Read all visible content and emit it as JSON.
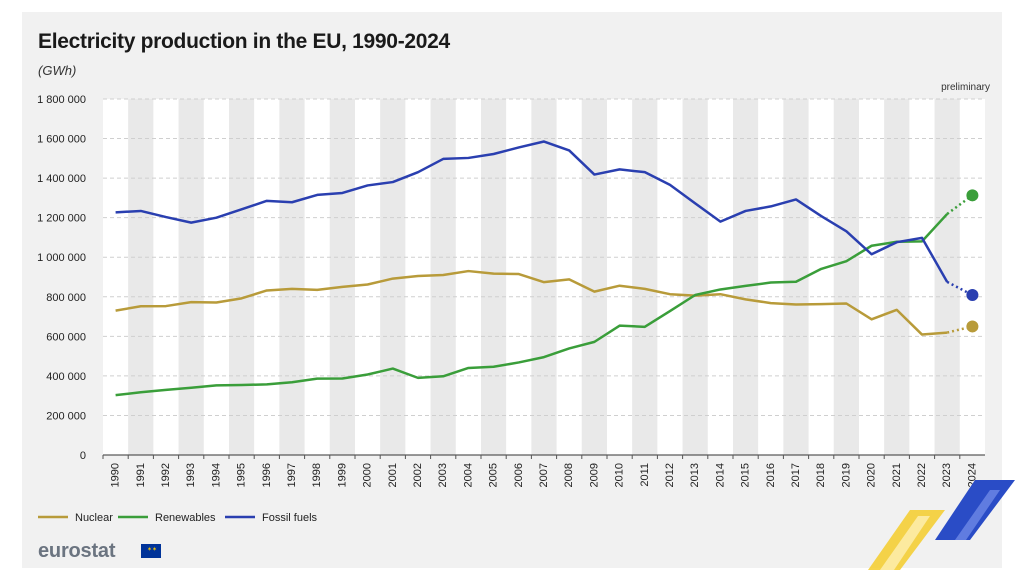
{
  "chart_data": {
    "type": "line",
    "title": "Electricity production in the EU, 1990-2024",
    "unit": "(GWh)",
    "annotation": "preliminary",
    "ylim": [
      0,
      1800000
    ],
    "yticks": [
      0,
      200000,
      400000,
      600000,
      800000,
      1000000,
      1200000,
      1400000,
      1600000,
      1800000
    ],
    "ytick_labels": [
      "0",
      "200 000",
      "400 000",
      "600 000",
      "800 000",
      "1 000 000",
      "1 200 000",
      "1 400 000",
      "1 600 000",
      "1 800 000"
    ],
    "x": [
      "1990",
      "1991",
      "1992",
      "1993",
      "1994",
      "1995",
      "1996",
      "1997",
      "1998",
      "1999",
      "2000",
      "2001",
      "2002",
      "2003",
      "2004",
      "2005",
      "2006",
      "2007",
      "2008",
      "2009",
      "2010",
      "2011",
      "2012",
      "2013",
      "2014",
      "2015",
      "2016",
      "2017",
      "2018",
      "2019",
      "2020",
      "2021",
      "2022",
      "2023",
      "2024"
    ],
    "grid": "vertical alternating bands",
    "legend_position": "bottom-left",
    "series": [
      {
        "name": "Nuclear",
        "color": "#b89b3a",
        "values": [
          730000,
          752000,
          753000,
          773000,
          771000,
          792000,
          832000,
          840000,
          835000,
          850000,
          862000,
          892000,
          905000,
          910000,
          930000,
          917000,
          915000,
          874000,
          888000,
          826000,
          856000,
          840000,
          813000,
          806000,
          813000,
          787000,
          768000,
          761000,
          763000,
          766000,
          686000,
          734000,
          609000,
          619000,
          650000
        ]
      },
      {
        "name": "Renewables",
        "color": "#3a9e3a",
        "values": [
          303000,
          317000,
          329000,
          340000,
          352000,
          354000,
          357000,
          368000,
          386000,
          387000,
          407000,
          437000,
          390000,
          398000,
          440000,
          446000,
          468000,
          495000,
          539000,
          572000,
          654000,
          648000,
          728000,
          809000,
          837000,
          855000,
          872000,
          876000,
          941000,
          980000,
          1058000,
          1078000,
          1080000,
          1219000,
          1313000
        ]
      },
      {
        "name": "Fossil fuels",
        "color": "#2a3fb0",
        "values": [
          1227000,
          1234000,
          1203000,
          1175000,
          1200000,
          1242000,
          1285000,
          1278000,
          1315000,
          1325000,
          1363000,
          1380000,
          1430000,
          1497000,
          1502000,
          1522000,
          1555000,
          1585000,
          1540000,
          1418000,
          1444000,
          1430000,
          1366000,
          1272000,
          1180000,
          1234000,
          1257000,
          1292000,
          1208000,
          1131000,
          1015000,
          1076000,
          1098000,
          875000,
          809000
        ]
      }
    ]
  },
  "branding": {
    "logo_text": "eurostat"
  }
}
